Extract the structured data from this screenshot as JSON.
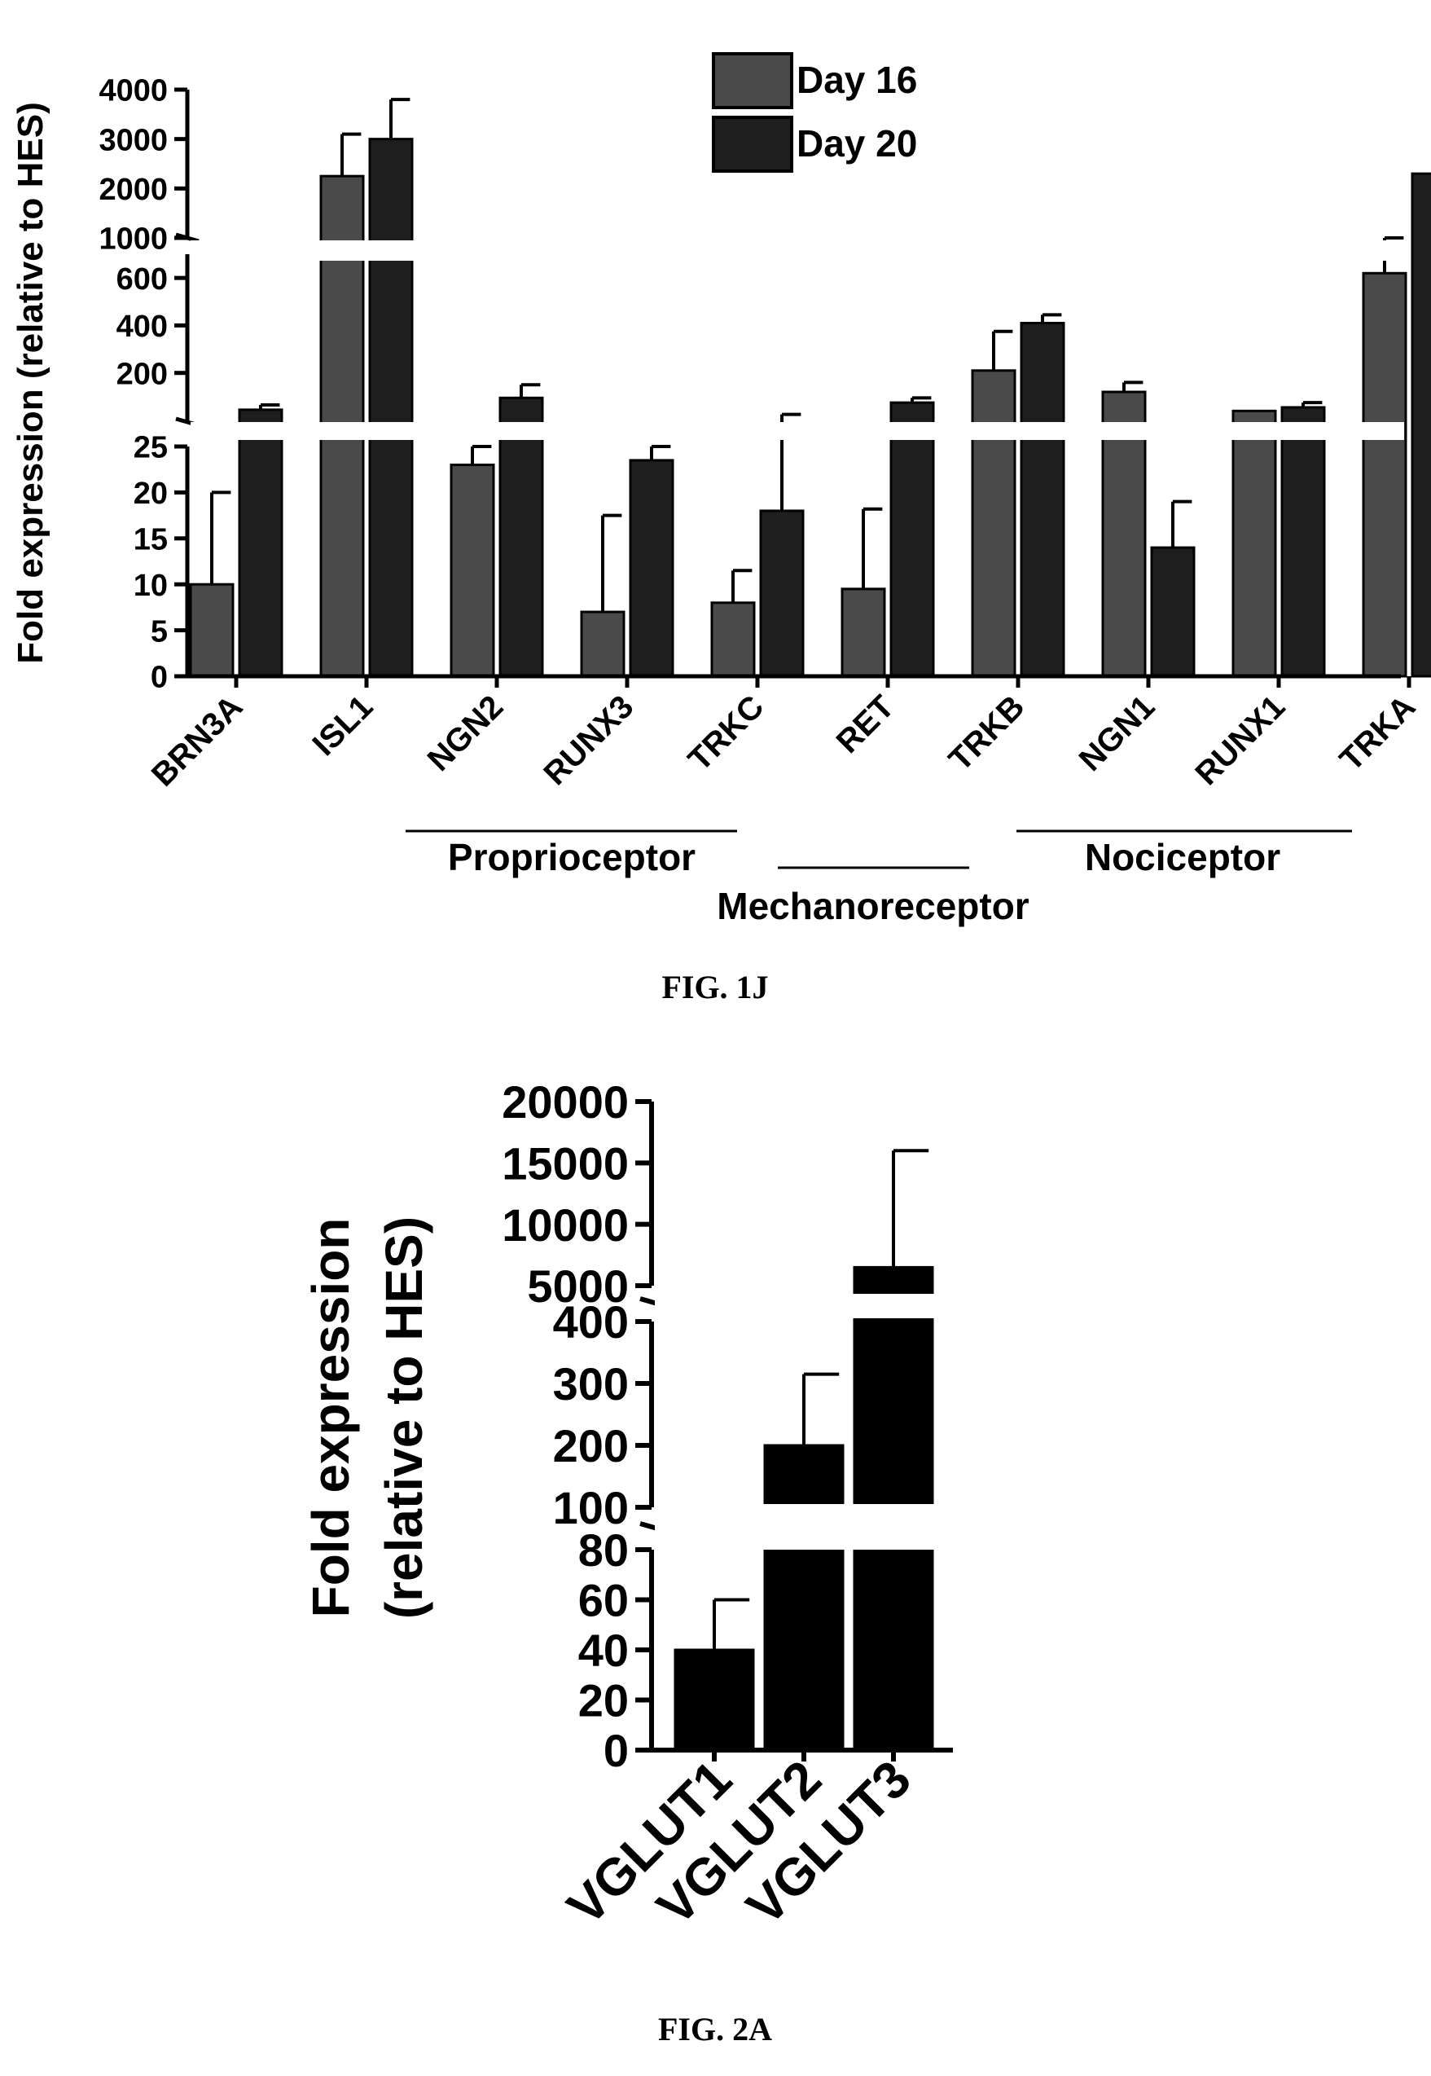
{
  "chart_data": [
    {
      "type": "bar",
      "title": "",
      "ylabel": "Fold expression  (relative to HES)",
      "xlabel": "",
      "categories": [
        "BRN3A",
        "ISL1",
        "NGN2",
        "RUNX3",
        "TRKC",
        "RET",
        "TRKB",
        "NGN1",
        "RUNX1",
        "TRKA"
      ],
      "series": [
        {
          "name": "Day 16",
          "color": "#4a4a4a",
          "values": [
            10,
            2250,
            23,
            7,
            8,
            9.5,
            210,
            120,
            40,
            620
          ],
          "errors": [
            10,
            850,
            2,
            10.5,
            3.5,
            8.7,
            165,
            40,
            0,
            90
          ]
        },
        {
          "name": "Day 20",
          "color": "#1e1e1e",
          "values": [
            45,
            3000,
            95,
            23.5,
            18,
            75,
            410,
            14,
            55,
            2300
          ],
          "errors": [
            20,
            800,
            55,
            1.5,
            7.5,
            20,
            35,
            5,
            20,
            900
          ]
        }
      ],
      "axis_segments": [
        {
          "range": [
            0,
            25
          ],
          "ticks": [
            "0",
            "5",
            "10",
            "15",
            "20",
            "25"
          ]
        },
        {
          "range": [
            0,
            700
          ],
          "ticks": [
            "200",
            "400",
            "600"
          ]
        },
        {
          "range": [
            1000,
            4000
          ],
          "ticks": [
            "1000",
            "2000",
            "3000",
            "4000"
          ]
        }
      ],
      "legend_position": "top-center",
      "groups": [
        {
          "label": "Proprioceptor",
          "members": [
            "NGN2",
            "RUNX3",
            "TRKC"
          ]
        },
        {
          "label": "Mechanoreceptor",
          "members": [
            "RET",
            "TRKB"
          ]
        },
        {
          "label": "Nociceptor",
          "members": [
            "NGN1",
            "RUNX1",
            "TRKA"
          ]
        }
      ],
      "caption": "FIG. 1J"
    },
    {
      "type": "bar",
      "title": "",
      "ylabel_lines": [
        "Fold expression",
        "(relative to HES)"
      ],
      "xlabel": "",
      "categories": [
        "VGLUT1",
        "VGLUT2",
        "VGLUT3"
      ],
      "series": [
        {
          "name": "",
          "color": "#000000",
          "values": [
            40,
            200,
            6500
          ],
          "errors": [
            20,
            115,
            9500
          ]
        }
      ],
      "axis_segments": [
        {
          "range": [
            0,
            80
          ],
          "ticks": [
            "0",
            "20",
            "40",
            "60",
            "80"
          ]
        },
        {
          "range": [
            100,
            400
          ],
          "ticks": [
            "100",
            "200",
            "300",
            "400"
          ]
        },
        {
          "range": [
            5000,
            20000
          ],
          "ticks": [
            "5000",
            "10000",
            "15000",
            "20000"
          ]
        }
      ],
      "caption": "FIG. 2A"
    }
  ]
}
